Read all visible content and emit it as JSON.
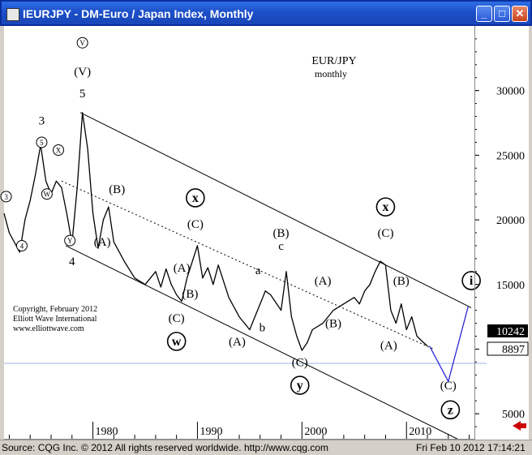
{
  "window": {
    "title": "IEURJPY - DM-Euro / Japan Index, Monthly",
    "min_icon": "minimize-icon",
    "max_icon": "maximize-icon",
    "close_icon": "close-icon"
  },
  "footer": {
    "source": "Source: CQG Inc. © 2012 All rights reserved worldwide. http://www.cqg.com",
    "timestamp": "Fri Feb 10 2012 17:14:21"
  },
  "colors": {
    "titlebar": "#1c4fc9",
    "price": "#000000",
    "projection": "#2a2ad8",
    "last_label_bg": "#000000",
    "ref_label_bg": "#ffffff",
    "ref_line": "#9ab6e8",
    "arrow": "#cc0000"
  },
  "chart_data": {
    "type": "line",
    "title": "EUR/JPY",
    "subtitle": "monthly",
    "x_ticks": [
      "1980",
      "1990",
      "2000",
      "2010"
    ],
    "y_ticks": [
      "30000",
      "25000",
      "20000",
      "15000",
      "10000",
      "5000"
    ],
    "xlim": [
      1971.5,
      2016.5
    ],
    "ylim": [
      3000,
      35000
    ],
    "last_price": "10242",
    "ref_price": "8897",
    "copyright": [
      "Copyright, February 2012",
      "Elliott Wave International",
      "www.elliottwave.com"
    ],
    "series": [
      {
        "values": [
          [
            1971.5,
            20500
          ],
          [
            1972,
            19000
          ],
          [
            1973,
            17500
          ],
          [
            1973.5,
            20000
          ],
          [
            1974,
            21500
          ],
          [
            1974.5,
            23500
          ],
          [
            1975,
            25800
          ],
          [
            1975.5,
            23000
          ],
          [
            1976,
            22000
          ],
          [
            1976.5,
            23000
          ],
          [
            1977,
            22500
          ],
          [
            1977.5,
            20500
          ],
          [
            1978,
            18200
          ],
          [
            1978.5,
            22500
          ],
          [
            1979,
            28300
          ],
          [
            1979.5,
            25500
          ],
          [
            1980,
            20500
          ],
          [
            1980.5,
            17800
          ],
          [
            1981,
            20000
          ],
          [
            1981.5,
            21000
          ],
          [
            1982,
            18300
          ],
          [
            1983,
            16800
          ],
          [
            1984,
            15500
          ],
          [
            1985,
            15000
          ],
          [
            1986,
            16000
          ],
          [
            1986.5,
            14800
          ],
          [
            1987,
            16200
          ],
          [
            1987.5,
            15000
          ],
          [
            1988,
            14200
          ],
          [
            1988.5,
            13700
          ],
          [
            1989,
            15500
          ],
          [
            1990,
            18000
          ],
          [
            1990.5,
            15500
          ],
          [
            1991,
            16300
          ],
          [
            1991.5,
            15000
          ],
          [
            1992,
            16500
          ],
          [
            1993,
            14000
          ],
          [
            1994,
            12500
          ],
          [
            1995,
            11500
          ],
          [
            1995.5,
            12500
          ],
          [
            1996,
            13500
          ],
          [
            1996.5,
            14500
          ],
          [
            1997,
            14200
          ],
          [
            1998,
            13000
          ],
          [
            1998.5,
            16000
          ],
          [
            1999,
            12500
          ],
          [
            1999.5,
            11000
          ],
          [
            2000,
            9900
          ],
          [
            2000.5,
            10500
          ],
          [
            2001,
            11500
          ],
          [
            2002,
            12000
          ],
          [
            2003,
            13000
          ],
          [
            2004,
            13500
          ],
          [
            2005,
            14000
          ],
          [
            2005.5,
            13500
          ],
          [
            2006,
            14500
          ],
          [
            2006.5,
            15000
          ],
          [
            2007,
            16000
          ],
          [
            2007.5,
            16800
          ],
          [
            2008,
            16500
          ],
          [
            2008.5,
            13000
          ],
          [
            2009,
            12000
          ],
          [
            2009.5,
            13500
          ],
          [
            2010,
            11500
          ],
          [
            2010.5,
            12500
          ],
          [
            2011,
            11000
          ],
          [
            2011.5,
            10600
          ],
          [
            2012,
            10242
          ]
        ]
      }
    ],
    "channel_lines": [
      {
        "name": "upper",
        "from": [
          1978.8,
          28300
        ],
        "to": [
          2016.2,
          13200
        ]
      },
      {
        "name": "lower",
        "from": [
          1977.4,
          18000
        ],
        "to": [
          2015,
          3000
        ]
      },
      {
        "name": "middle",
        "from": [
          1977.0,
          23000
        ],
        "to": [
          2012.6,
          10000
        ]
      }
    ],
    "projection": [
      [
        2012.2,
        10242
      ],
      [
        2014.0,
        7500
      ],
      [
        2015.9,
        13300
      ]
    ],
    "annotations": [
      {
        "text": "V",
        "x": 1979.0,
        "y": 33700,
        "circled": true
      },
      {
        "text": "(V)",
        "x": 1979.0,
        "y": 31500
      },
      {
        "text": "5",
        "x": 1979.0,
        "y": 29800
      },
      {
        "text": "3",
        "x": 1975.1,
        "y": 27700
      },
      {
        "text": "5",
        "x": 1975.1,
        "y": 26000,
        "circled": true
      },
      {
        "text": "X",
        "x": 1976.7,
        "y": 25400,
        "circled": true
      },
      {
        "text": "W",
        "x": 1975.6,
        "y": 22000,
        "circled": true
      },
      {
        "text": "3",
        "x": 1971.7,
        "y": 21800,
        "circled": true
      },
      {
        "text": "4",
        "x": 1973.2,
        "y": 18000,
        "circled": true
      },
      {
        "text": "Y",
        "x": 1977.8,
        "y": 18400,
        "circled": true
      },
      {
        "text": "4",
        "x": 1978.0,
        "y": 16800
      },
      {
        "text": "(A)",
        "x": 1980.9,
        "y": 18300
      },
      {
        "text": "(B)",
        "x": 1982.3,
        "y": 22400
      },
      {
        "text": "x",
        "x": 1989.8,
        "y": 21700,
        "circled": true
      },
      {
        "text": "(C)",
        "x": 1989.8,
        "y": 19700
      },
      {
        "text": "(A)",
        "x": 1988.5,
        "y": 16300
      },
      {
        "text": "(B)",
        "x": 1989.3,
        "y": 14300
      },
      {
        "text": "(C)",
        "x": 1988.0,
        "y": 12400
      },
      {
        "text": "w",
        "x": 1988.0,
        "y": 10600,
        "circled": true
      },
      {
        "text": "(A)",
        "x": 1993.8,
        "y": 10600
      },
      {
        "text": "a",
        "x": 1995.8,
        "y": 16100
      },
      {
        "text": "b",
        "x": 1996.2,
        "y": 11700
      },
      {
        "text": "c",
        "x": 1998.0,
        "y": 18000
      },
      {
        "text": "(B)",
        "x": 1998.0,
        "y": 19000
      },
      {
        "text": "(C)",
        "x": 1999.8,
        "y": 9000
      },
      {
        "text": "y",
        "x": 1999.8,
        "y": 7200,
        "circled": true
      },
      {
        "text": "(A)",
        "x": 2002.0,
        "y": 15300
      },
      {
        "text": "(B)",
        "x": 2003.0,
        "y": 12000
      },
      {
        "text": "x",
        "x": 2008.0,
        "y": 21000,
        "circled": true
      },
      {
        "text": "(C)",
        "x": 2008.0,
        "y": 19000
      },
      {
        "text": "(B)",
        "x": 2009.5,
        "y": 15300
      },
      {
        "text": "(A)",
        "x": 2008.3,
        "y": 10300
      },
      {
        "text": "i",
        "x": 2016.2,
        "y": 15300,
        "circled": true
      },
      {
        "text": "(C)",
        "x": 2014.0,
        "y": 7200
      },
      {
        "text": "z",
        "x": 2014.2,
        "y": 5300,
        "circled": true
      }
    ]
  }
}
